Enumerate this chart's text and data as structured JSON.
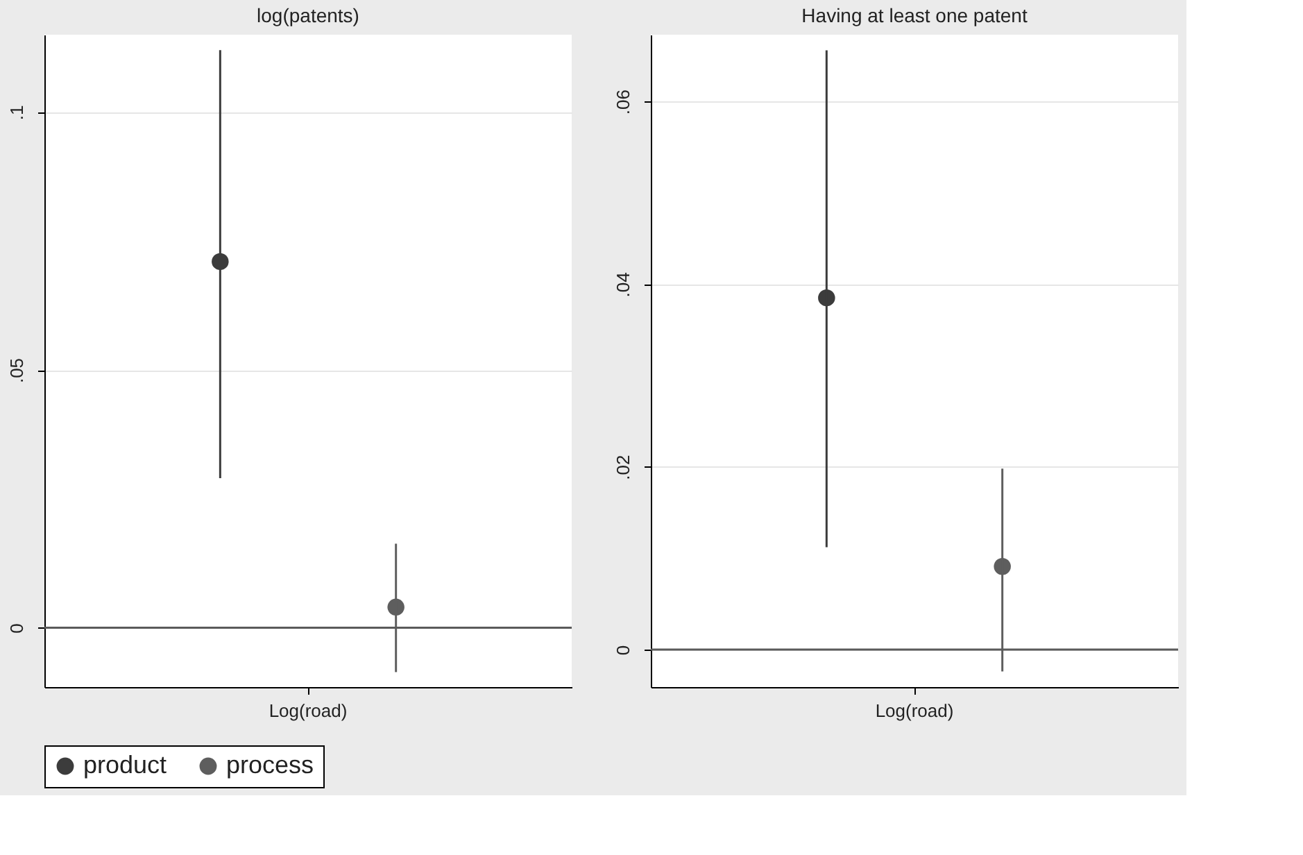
{
  "chart_data": [
    {
      "type": "scatter",
      "title": "log(patents)",
      "xlabel": null,
      "categories": [
        "Log(road)"
      ],
      "series": [
        {
          "name": "product",
          "color": "#3c3c3c",
          "values": [
            0.071
          ],
          "errors": [
            [
              0.029,
              0.112
            ]
          ]
        },
        {
          "name": "process",
          "color": "#5e5e5e",
          "values": [
            0.004
          ],
          "errors": [
            [
              -0.0086,
              0.0163
            ]
          ]
        }
      ],
      "ylim": [
        -0.0115,
        0.115
      ],
      "yticks": [
        {
          "value": 0,
          "label": "0"
        },
        {
          "value": 0.05,
          "label": ".05"
        },
        {
          "value": 0.1,
          "label": ".1"
        }
      ],
      "ref_lines": [
        {
          "axis": "y",
          "value": 0,
          "color": "#5a5a5a"
        }
      ],
      "grid": "y",
      "marker": "circle",
      "legend": "bottom"
    },
    {
      "type": "scatter",
      "title": "Having at least one patent",
      "categories": [
        "Log(road)"
      ],
      "series": [
        {
          "name": "product",
          "color": "#3c3c3c",
          "values": [
            0.0385
          ],
          "errors": [
            [
              0.0112,
              0.0656
            ]
          ]
        },
        {
          "name": "process",
          "color": "#5e5e5e",
          "values": [
            0.0091
          ],
          "errors": [
            [
              -0.0024,
              0.0198
            ]
          ]
        }
      ],
      "ylim": [
        -0.0041,
        0.0673
      ],
      "yticks": [
        {
          "value": 0,
          "label": "0"
        },
        {
          "value": 0.02,
          "label": ".02"
        },
        {
          "value": 0.04,
          "label": ".04"
        },
        {
          "value": 0.06,
          "label": ".06"
        }
      ],
      "ref_lines": [
        {
          "axis": "y",
          "value": 0,
          "color": "#5a5a5a"
        }
      ],
      "grid": "y",
      "marker": "circle",
      "legend": "bottom"
    }
  ]
}
